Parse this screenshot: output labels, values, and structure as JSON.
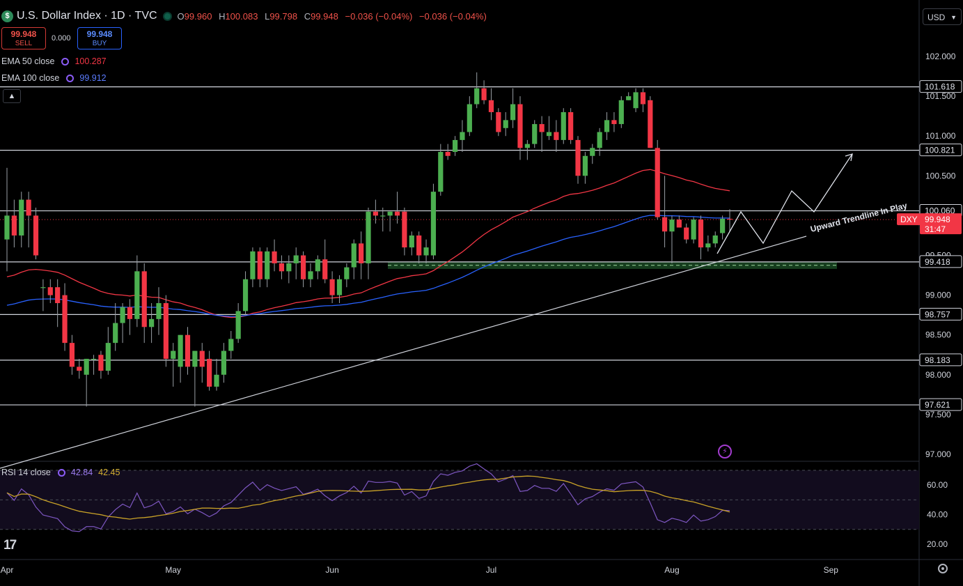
{
  "header": {
    "symbol_logo": "$",
    "title": "U.S. Dollar Index · 1D · TVC",
    "ohlc": [
      {
        "k": "O",
        "v": "99.960"
      },
      {
        "k": "H",
        "v": "100.083"
      },
      {
        "k": "L",
        "v": "99.798"
      },
      {
        "k": "C",
        "v": "99.948"
      }
    ],
    "change": "−0.036 (−0.04%)",
    "change2": "−0.036 (−0.04%)"
  },
  "trade": {
    "sell_price": "99.948",
    "sell_label": "SELL",
    "spread": "0.000",
    "buy_price": "99.948",
    "buy_label": "BUY"
  },
  "indicators": {
    "ema50": {
      "label": "EMA 50 close",
      "value": "100.287",
      "color": "#f23645"
    },
    "ema100": {
      "label": "EMA 100 close",
      "value": "99.912",
      "color": "#2962ff"
    },
    "rsi": {
      "label": "RSI 14 close",
      "value1": "42.84",
      "value2": "42.45"
    }
  },
  "collapse_icon": "chevron-up-icon",
  "currency": "USD",
  "annotation": "Upward Trendline In Play",
  "price_axis": {
    "ticks": [
      "102.000",
      "101.500",
      "101.000",
      "100.500",
      "100.000",
      "99.500",
      "99.000",
      "98.500",
      "98.000",
      "97.500",
      "97.000"
    ],
    "level_labels": [
      "101.618",
      "100.821",
      "100.060",
      "99.418",
      "98.757",
      "98.183",
      "97.621"
    ],
    "current_symbol": "DXY",
    "current_price": "99.948",
    "countdown": "31:47"
  },
  "rsi_axis": {
    "ticks": [
      "60.00",
      "40.00",
      "20.00"
    ]
  },
  "time_axis": {
    "labels": [
      "Apr",
      "May",
      "Jun",
      "Jul",
      "Aug",
      "Sep"
    ]
  },
  "colors": {
    "up": "#4caf50",
    "down": "#f23645",
    "bg": "#000000",
    "level_line": "#d1d4dc",
    "rsi": "#7e57c2",
    "rsi_ma": "#c9a227"
  },
  "chart_data": {
    "type": "candlestick",
    "price_range": [
      97.0,
      102.0
    ],
    "horizontal_levels": [
      101.618,
      100.821,
      100.06,
      99.418,
      98.757,
      98.183,
      97.621
    ],
    "support_zone": [
      99.33,
      99.42
    ],
    "candles": [
      [
        99.7,
        100.6,
        99.3,
        100.0
      ],
      [
        100.0,
        100.2,
        99.6,
        99.75
      ],
      [
        99.75,
        100.3,
        99.6,
        100.2
      ],
      [
        100.2,
        100.3,
        99.6,
        100.0
      ],
      [
        100.0,
        100.1,
        99.45,
        99.5
      ],
      [
        99.1,
        99.2,
        98.8,
        99.1
      ],
      [
        99.1,
        99.2,
        98.9,
        99.0
      ],
      [
        99.1,
        99.2,
        98.6,
        98.9
      ],
      [
        99.0,
        99.15,
        98.3,
        98.4
      ],
      [
        98.4,
        98.5,
        98.0,
        98.1
      ],
      [
        98.1,
        98.2,
        97.95,
        98.05
      ],
      [
        98.0,
        98.2,
        97.6,
        98.2
      ],
      [
        98.2,
        98.25,
        98.0,
        98.2
      ],
      [
        98.25,
        98.3,
        97.95,
        98.05
      ],
      [
        98.05,
        98.6,
        98.0,
        98.4
      ],
      [
        98.4,
        98.9,
        98.3,
        98.65
      ],
      [
        98.65,
        98.9,
        98.4,
        98.85
      ],
      [
        98.85,
        98.95,
        98.5,
        98.7
      ],
      [
        98.7,
        99.5,
        98.6,
        99.3
      ],
      [
        99.3,
        99.4,
        98.4,
        98.6
      ],
      [
        98.6,
        98.9,
        98.4,
        98.7
      ],
      [
        98.7,
        99.1,
        98.5,
        98.9
      ],
      [
        98.9,
        99.0,
        98.1,
        98.2
      ],
      [
        98.2,
        98.4,
        97.85,
        98.3
      ],
      [
        98.1,
        98.5,
        97.9,
        98.5
      ],
      [
        98.5,
        98.6,
        98.0,
        98.1
      ],
      [
        98.1,
        98.3,
        97.6,
        98.3
      ],
      [
        98.3,
        98.4,
        97.9,
        98.1
      ],
      [
        98.2,
        98.3,
        97.8,
        97.85
      ],
      [
        97.85,
        98.2,
        97.8,
        98.0
      ],
      [
        98.0,
        98.4,
        97.9,
        98.3
      ],
      [
        98.3,
        98.55,
        98.2,
        98.45
      ],
      [
        98.45,
        98.9,
        98.4,
        98.8
      ],
      [
        98.8,
        99.3,
        98.75,
        99.2
      ],
      [
        99.2,
        99.6,
        99.1,
        99.55
      ],
      [
        99.55,
        99.6,
        99.1,
        99.2
      ],
      [
        99.2,
        99.6,
        99.1,
        99.55
      ],
      [
        99.55,
        99.7,
        99.3,
        99.4
      ],
      [
        99.4,
        99.5,
        99.2,
        99.3
      ],
      [
        99.3,
        99.5,
        99.15,
        99.4
      ],
      [
        99.4,
        99.6,
        99.2,
        99.5
      ],
      [
        99.5,
        99.55,
        99.1,
        99.2
      ],
      [
        99.2,
        99.4,
        99.1,
        99.3
      ],
      [
        99.3,
        99.5,
        99.2,
        99.45
      ],
      [
        99.45,
        99.7,
        99.15,
        99.2
      ],
      [
        99.2,
        99.3,
        98.9,
        99.0
      ],
      [
        99.0,
        99.25,
        98.9,
        99.2
      ],
      [
        99.2,
        99.4,
        99.1,
        99.35
      ],
      [
        99.35,
        99.7,
        99.2,
        99.65
      ],
      [
        99.65,
        99.8,
        99.2,
        99.4
      ],
      [
        99.4,
        100.1,
        99.2,
        100.05
      ],
      [
        100.05,
        100.2,
        99.9,
        100.0
      ],
      [
        100.0,
        100.1,
        99.8,
        100.0
      ],
      [
        100.0,
        100.05,
        99.8,
        100.05
      ],
      [
        100.05,
        100.3,
        99.9,
        100.0
      ],
      [
        100.05,
        100.1,
        99.5,
        99.6
      ],
      [
        99.6,
        99.8,
        99.5,
        99.75
      ],
      [
        99.75,
        99.8,
        99.4,
        99.5
      ],
      [
        99.5,
        99.7,
        99.4,
        99.6
      ],
      [
        99.5,
        100.4,
        99.45,
        100.3
      ],
      [
        100.3,
        100.9,
        100.25,
        100.8
      ],
      [
        100.8,
        100.9,
        100.7,
        100.75
      ],
      [
        100.8,
        101.0,
        100.75,
        100.95
      ],
      [
        100.95,
        101.2,
        100.8,
        101.05
      ],
      [
        101.05,
        101.5,
        101.0,
        101.4
      ],
      [
        101.4,
        101.8,
        101.35,
        101.6
      ],
      [
        101.6,
        101.7,
        101.4,
        101.45
      ],
      [
        101.45,
        101.6,
        101.2,
        101.3
      ],
      [
        101.3,
        101.35,
        101.0,
        101.05
      ],
      [
        101.1,
        101.3,
        101.0,
        101.2
      ],
      [
        101.2,
        101.6,
        101.1,
        101.4
      ],
      [
        101.4,
        101.5,
        100.7,
        100.85
      ],
      [
        100.85,
        100.95,
        100.7,
        100.9
      ],
      [
        100.9,
        101.2,
        100.85,
        101.15
      ],
      [
        101.15,
        101.25,
        100.8,
        101.05
      ],
      [
        101.0,
        101.25,
        100.95,
        101.05
      ],
      [
        101.05,
        101.2,
        100.8,
        100.95
      ],
      [
        100.95,
        101.35,
        100.9,
        101.3
      ],
      [
        101.3,
        101.35,
        100.9,
        100.95
      ],
      [
        100.95,
        101.0,
        100.4,
        100.5
      ],
      [
        100.5,
        100.8,
        100.4,
        100.75
      ],
      [
        100.75,
        100.9,
        100.65,
        100.85
      ],
      [
        100.85,
        101.1,
        100.75,
        101.05
      ],
      [
        101.05,
        101.3,
        100.95,
        101.2
      ],
      [
        101.2,
        101.3,
        101.05,
        101.15
      ],
      [
        101.15,
        101.5,
        101.1,
        101.45
      ],
      [
        101.45,
        101.55,
        101.45,
        101.5
      ],
      [
        101.35,
        101.6,
        101.3,
        101.55
      ],
      [
        101.55,
        101.6,
        101.3,
        101.4
      ],
      [
        101.45,
        101.5,
        100.85,
        100.85
      ],
      [
        100.85,
        100.95,
        99.95,
        99.98
      ],
      [
        99.98,
        100.5,
        99.6,
        99.8
      ],
      [
        99.8,
        100.0,
        99.4,
        99.95
      ],
      [
        99.95,
        100.0,
        99.85,
        99.85
      ],
      [
        99.85,
        99.9,
        99.65,
        99.7
      ],
      [
        99.7,
        99.98,
        99.65,
        99.95
      ],
      [
        99.95,
        100.0,
        99.45,
        99.6
      ],
      [
        99.6,
        99.75,
        99.55,
        99.65
      ],
      [
        99.65,
        99.8,
        99.6,
        99.75
      ],
      [
        99.78,
        100.0,
        99.7,
        99.96
      ],
      [
        99.96,
        100.08,
        99.8,
        99.95
      ]
    ]
  }
}
